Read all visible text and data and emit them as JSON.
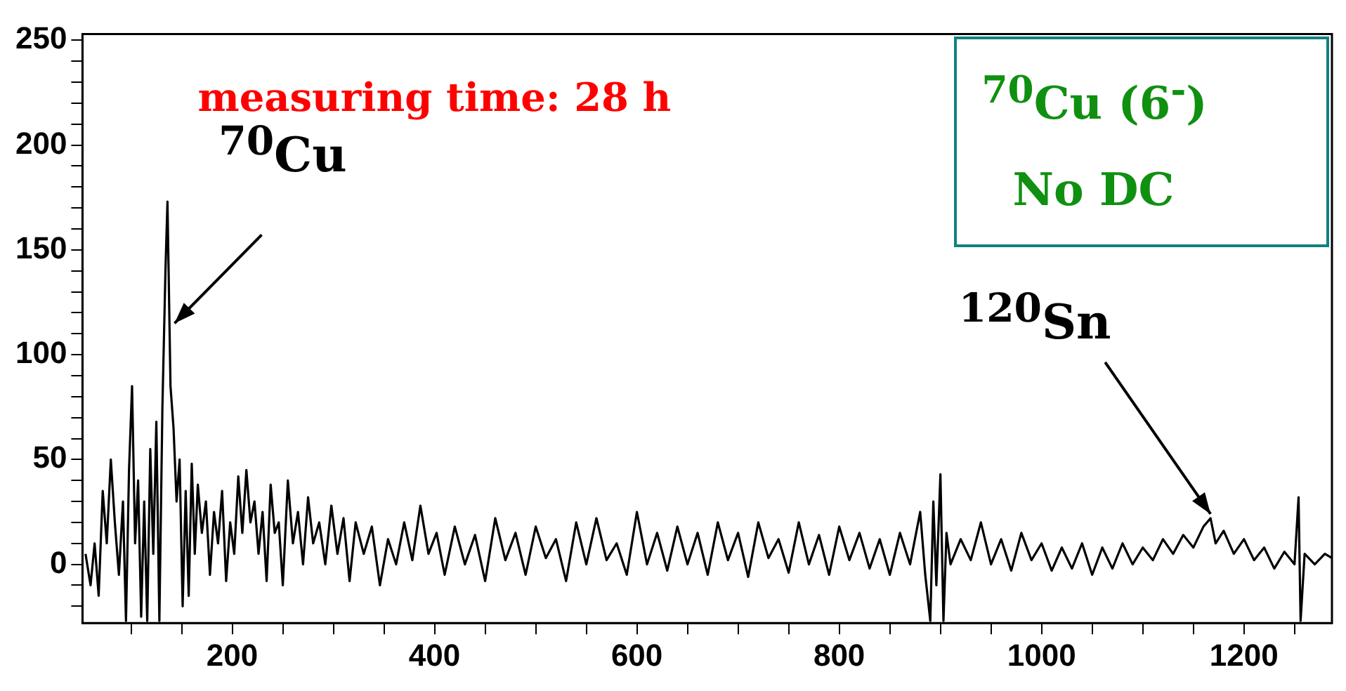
{
  "chart_data": {
    "type": "line",
    "annotations": [
      "measuring time: 28 h",
      "$^{70}$Cu (6$^{-}$)",
      "No DC",
      {
        "text": "$^{70}$Cu",
        "x": 143,
        "y": 115
      },
      {
        "text": "$^{120}$Sn",
        "x": 1167,
        "y": 24
      }
    ],
    "x": [
      55,
      60,
      64,
      68,
      72,
      76,
      80,
      84,
      88,
      92,
      95,
      98,
      101,
      104,
      107,
      110,
      113,
      116,
      119,
      122,
      125,
      128,
      131,
      134,
      136,
      139,
      142,
      145,
      148,
      151,
      154,
      157,
      160,
      163,
      166,
      170,
      174,
      178,
      182,
      186,
      190,
      194,
      198,
      202,
      206,
      210,
      214,
      218,
      222,
      226,
      230,
      234,
      238,
      242,
      246,
      250,
      255,
      260,
      265,
      270,
      275,
      280,
      286,
      292,
      298,
      304,
      310,
      316,
      322,
      330,
      338,
      346,
      354,
      362,
      370,
      378,
      386,
      394,
      402,
      410,
      420,
      430,
      440,
      450,
      460,
      470,
      480,
      490,
      500,
      510,
      520,
      530,
      540,
      550,
      560,
      570,
      580,
      590,
      600,
      610,
      620,
      630,
      640,
      650,
      660,
      670,
      680,
      690,
      700,
      710,
      720,
      730,
      740,
      750,
      760,
      770,
      780,
      790,
      800,
      810,
      820,
      830,
      840,
      850,
      860,
      870,
      880,
      885,
      890,
      893,
      896,
      900,
      903,
      906,
      910,
      920,
      930,
      940,
      950,
      960,
      970,
      980,
      990,
      1000,
      1010,
      1020,
      1030,
      1040,
      1050,
      1060,
      1070,
      1080,
      1090,
      1100,
      1110,
      1120,
      1130,
      1140,
      1150,
      1160,
      1167,
      1172,
      1180,
      1190,
      1200,
      1210,
      1220,
      1230,
      1240,
      1250,
      1254,
      1256,
      1260,
      1270,
      1280,
      1287
    ],
    "series": [
      {
        "color": "#000000",
        "values": [
          5,
          -10,
          10,
          -15,
          35,
          10,
          50,
          20,
          -5,
          30,
          -27,
          45,
          85,
          10,
          40,
          -25,
          30,
          -27,
          55,
          5,
          68,
          -27,
          75,
          140,
          173,
          85,
          65,
          30,
          50,
          -20,
          35,
          -15,
          48,
          5,
          38,
          15,
          30,
          -5,
          25,
          10,
          35,
          -8,
          20,
          5,
          42,
          15,
          45,
          20,
          30,
          5,
          25,
          -8,
          38,
          15,
          20,
          -10,
          40,
          10,
          25,
          0,
          32,
          10,
          20,
          0,
          28,
          5,
          22,
          -8,
          20,
          5,
          18,
          -10,
          12,
          0,
          20,
          2,
          28,
          5,
          15,
          -5,
          18,
          0,
          14,
          -8,
          22,
          2,
          15,
          -5,
          18,
          3,
          12,
          -8,
          20,
          0,
          22,
          2,
          10,
          -5,
          25,
          0,
          15,
          -3,
          18,
          0,
          15,
          -5,
          20,
          2,
          15,
          -6,
          20,
          3,
          12,
          -4,
          20,
          0,
          14,
          -5,
          18,
          2,
          15,
          -2,
          12,
          -5,
          15,
          0,
          25,
          -5,
          -27,
          30,
          -10,
          43,
          -27,
          15,
          0,
          12,
          2,
          20,
          0,
          12,
          -3,
          15,
          2,
          10,
          -3,
          8,
          -2,
          10,
          -5,
          8,
          -2,
          10,
          0,
          8,
          2,
          12,
          5,
          14,
          8,
          18,
          22,
          10,
          16,
          5,
          12,
          2,
          8,
          -2,
          6,
          0,
          32,
          -27,
          5,
          0,
          5,
          3
        ]
      }
    ],
    "xlim": [
      52,
      1287
    ],
    "ylim": [
      -28,
      253
    ],
    "xticks": [
      {
        "value": 100,
        "label": null
      },
      {
        "value": 150,
        "label": null
      },
      200,
      {
        "value": 250,
        "label": null
      },
      {
        "value": 300,
        "label": null
      },
      {
        "value": 350,
        "label": null
      },
      400,
      {
        "value": 450,
        "label": null
      },
      {
        "value": 500,
        "label": null
      },
      {
        "value": 550,
        "label": null
      },
      600,
      {
        "value": 650,
        "label": null
      },
      {
        "value": 700,
        "label": null
      },
      {
        "value": 750,
        "label": null
      },
      800,
      {
        "value": 850,
        "label": null
      },
      {
        "value": 900,
        "label": null
      },
      {
        "value": 950,
        "label": null
      },
      1000,
      {
        "value": 1050,
        "label": null
      },
      {
        "value": 1100,
        "label": null
      },
      {
        "value": 1150,
        "label": null
      },
      1200,
      {
        "value": 1250,
        "label": null
      }
    ],
    "yticks": [
      {
        "value": -20,
        "label": null
      },
      {
        "value": -10,
        "label": null
      },
      0,
      {
        "value": 10,
        "label": null
      },
      {
        "value": 20,
        "label": null
      },
      {
        "value": 30,
        "label": null
      },
      {
        "value": 40,
        "label": null
      },
      50,
      {
        "value": 60,
        "label": null
      },
      {
        "value": 70,
        "label": null
      },
      {
        "value": 80,
        "label": null
      },
      {
        "value": 90,
        "label": null
      },
      100,
      {
        "value": 110,
        "label": null
      },
      {
        "value": 120,
        "label": null
      },
      {
        "value": 130,
        "label": null
      },
      {
        "value": 140,
        "label": null
      },
      150,
      {
        "value": 160,
        "label": null
      },
      {
        "value": 170,
        "label": null
      },
      {
        "value": 180,
        "label": null
      },
      {
        "value": 190,
        "label": null
      },
      200,
      {
        "value": 210,
        "label": null
      },
      {
        "value": 220,
        "label": null
      },
      {
        "value": 230,
        "label": null
      },
      {
        "value": 240,
        "label": null
      },
      250
    ],
    "grid": false,
    "legend": false,
    "marker": "none",
    "line_style": "solid"
  }
}
